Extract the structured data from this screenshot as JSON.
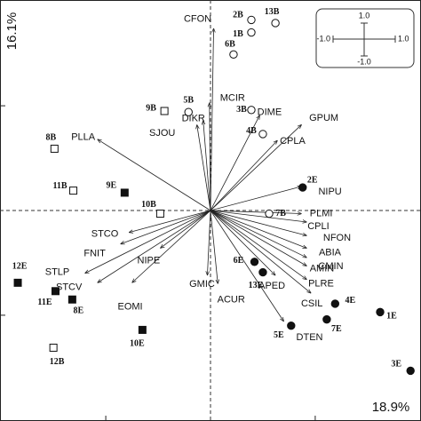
{
  "chart_data": {
    "type": "biplot",
    "xlabel": "18.9%",
    "ylabel": "16.1%",
    "xlim": [
      -2.01,
      2.01
    ],
    "ylim": [
      -2.01,
      2.01
    ],
    "xticks": [
      -1,
      0,
      1
    ],
    "yticks": [
      -1,
      0,
      1
    ],
    "scale_labels": [
      "1.0",
      "-1.0",
      "1.0",
      "-1.0"
    ],
    "arrows": [
      {
        "label": "CFON",
        "x": 0.03,
        "y": 1.74
      },
      {
        "label": "MCIR",
        "x": -0.01,
        "y": 1.03
      },
      {
        "label": "DIKR",
        "x": -0.07,
        "y": 0.86
      },
      {
        "label": "SJOU",
        "x": -0.13,
        "y": 0.82
      },
      {
        "label": "DIME",
        "x": 0.47,
        "y": 0.91
      },
      {
        "label": "GPUM",
        "x": 0.87,
        "y": 0.82
      },
      {
        "label": "CPLA",
        "x": 0.64,
        "y": 0.67
      },
      {
        "label": "PLLA",
        "x": -1.08,
        "y": 0.68
      },
      {
        "label": "NIPU",
        "x": 0.87,
        "y": 0.23
      },
      {
        "label": "PLMI",
        "x": 0.87,
        "y": -0.03
      },
      {
        "label": "CPLI",
        "x": 0.92,
        "y": -0.11
      },
      {
        "label": "NFON",
        "x": 0.92,
        "y": -0.24
      },
      {
        "label": "ABIA",
        "x": 0.92,
        "y": -0.36
      },
      {
        "label": "CMIN",
        "x": 0.92,
        "y": -0.45
      },
      {
        "label": "AMIN",
        "x": 0.92,
        "y": -0.53
      },
      {
        "label": "PLRE",
        "x": 0.92,
        "y": -0.66
      },
      {
        "label": "CSIL",
        "x": 0.96,
        "y": -0.79
      },
      {
        "label": "APED",
        "x": 0.62,
        "y": -0.62
      },
      {
        "label": "DTEN",
        "x": 0.7,
        "y": -1.06
      },
      {
        "label": "STCO",
        "x": -0.78,
        "y": -0.21
      },
      {
        "label": "FNIT",
        "x": -0.86,
        "y": -0.32
      },
      {
        "label": "NIPE",
        "x": -0.48,
        "y": -0.36
      },
      {
        "label": "STLP",
        "x": -1.2,
        "y": -0.6
      },
      {
        "label": "STCV",
        "x": -1.08,
        "y": -0.69
      },
      {
        "label": "EOMI",
        "x": -0.75,
        "y": -0.69
      },
      {
        "label": "GMIC",
        "x": -0.03,
        "y": -0.62
      },
      {
        "label": "ACUR",
        "x": 0.07,
        "y": -0.7
      }
    ],
    "points": [
      {
        "label": "2B",
        "x": 0.39,
        "y": 1.82,
        "marker": "circle-open"
      },
      {
        "label": "13B",
        "x": 0.62,
        "y": 1.79,
        "marker": "circle-open"
      },
      {
        "label": "1B",
        "x": 0.39,
        "y": 1.7,
        "marker": "circle-open"
      },
      {
        "label": "6B",
        "x": 0.22,
        "y": 1.49,
        "marker": "circle-open"
      },
      {
        "label": "5B",
        "x": -0.21,
        "y": 0.94,
        "marker": "circle-open"
      },
      {
        "label": "9B",
        "x": -0.44,
        "y": 0.95,
        "marker": "square-open"
      },
      {
        "label": "3B",
        "x": 0.39,
        "y": 0.96,
        "marker": "circle-open"
      },
      {
        "label": "4B",
        "x": 0.5,
        "y": 0.73,
        "marker": "circle-open"
      },
      {
        "label": "8B",
        "x": -1.49,
        "y": 0.59,
        "marker": "square-open"
      },
      {
        "label": "11B",
        "x": -1.31,
        "y": 0.19,
        "marker": "square-open"
      },
      {
        "label": "9E",
        "x": -0.82,
        "y": 0.17,
        "marker": "square"
      },
      {
        "label": "10B",
        "x": -0.48,
        "y": -0.03,
        "marker": "square-open"
      },
      {
        "label": "2E",
        "x": 0.88,
        "y": 0.22,
        "marker": "circle"
      },
      {
        "label": "7B",
        "x": 0.56,
        "y": -0.03,
        "marker": "circle-open"
      },
      {
        "label": "12E",
        "x": -1.84,
        "y": -0.69,
        "marker": "square"
      },
      {
        "label": "11E",
        "x": -1.48,
        "y": -0.77,
        "marker": "square"
      },
      {
        "label": "8E",
        "x": -1.32,
        "y": -0.85,
        "marker": "square"
      },
      {
        "label": "10E",
        "x": -0.65,
        "y": -1.14,
        "marker": "square"
      },
      {
        "label": "12B",
        "x": -1.5,
        "y": -1.31,
        "marker": "square-open"
      },
      {
        "label": "6E",
        "x": 0.42,
        "y": -0.49,
        "marker": "circle"
      },
      {
        "label": "13E",
        "x": 0.5,
        "y": -0.59,
        "marker": "circle"
      },
      {
        "label": "4E",
        "x": 1.19,
        "y": -0.89,
        "marker": "circle"
      },
      {
        "label": "7E",
        "x": 1.11,
        "y": -1.04,
        "marker": "circle"
      },
      {
        "label": "5E",
        "x": 0.77,
        "y": -1.1,
        "marker": "circle"
      },
      {
        "label": "1E",
        "x": 1.62,
        "y": -0.97,
        "marker": "circle"
      },
      {
        "label": "3E",
        "x": 1.91,
        "y": -1.53,
        "marker": "circle"
      }
    ]
  }
}
